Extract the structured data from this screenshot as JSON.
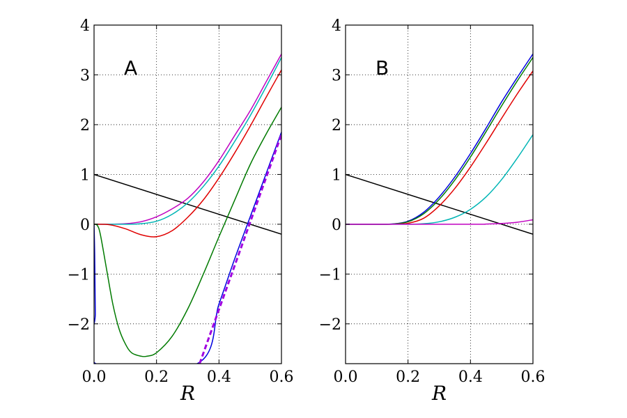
{
  "chart_data": [
    {
      "type": "line",
      "panel_label": "A",
      "xlabel": "R",
      "ylabel": "",
      "xlim": [
        0,
        0.6
      ],
      "ylim": [
        -2.8,
        4
      ],
      "xticks": [
        0,
        0.2,
        0.4,
        0.6
      ],
      "xtick_labels": [
        "0.0",
        "0.2",
        "0.4",
        "0.6"
      ],
      "yticks": [
        -2,
        -1,
        0,
        1,
        2,
        3,
        4
      ],
      "ytick_labels": [
        "−2",
        "−1",
        "0",
        "1",
        "2",
        "3",
        "4"
      ],
      "grid": true,
      "series": [
        {
          "name": "black line",
          "color": "#000000",
          "dashed": false,
          "x": [
            0,
            0.6
          ],
          "y": [
            1.0,
            -0.2
          ]
        },
        {
          "name": "magenta curve",
          "color": "#c000c0",
          "dashed": false,
          "x": [
            0,
            0.05,
            0.1,
            0.15,
            0.2,
            0.25,
            0.3,
            0.35,
            0.4,
            0.45,
            0.5,
            0.55,
            0.6
          ],
          "y": [
            0,
            0,
            0.01,
            0.05,
            0.15,
            0.31,
            0.52,
            0.85,
            1.28,
            1.78,
            2.28,
            2.85,
            3.42
          ]
        },
        {
          "name": "cyan curve",
          "color": "#00b5b5",
          "dashed": false,
          "x": [
            0,
            0.05,
            0.1,
            0.15,
            0.2,
            0.25,
            0.3,
            0.35,
            0.4,
            0.45,
            0.5,
            0.55,
            0.6
          ],
          "y": [
            0,
            0,
            0,
            0.01,
            0.06,
            0.2,
            0.43,
            0.76,
            1.17,
            1.66,
            2.18,
            2.75,
            3.35
          ]
        },
        {
          "name": "red curve",
          "color": "#e00000",
          "dashed": false,
          "x": [
            0,
            0.05,
            0.1,
            0.15,
            0.2,
            0.25,
            0.3,
            0.35,
            0.4,
            0.45,
            0.5,
            0.55,
            0.6
          ],
          "y": [
            0,
            -0.01,
            -0.09,
            -0.21,
            -0.25,
            -0.13,
            0.14,
            0.49,
            0.93,
            1.43,
            1.97,
            2.54,
            3.1
          ]
        },
        {
          "name": "green curve",
          "color": "#007a00",
          "dashed": false,
          "x": [
            0,
            0.01,
            0.02,
            0.04,
            0.06,
            0.08,
            0.1,
            0.12,
            0.15,
            0.17,
            0.2,
            0.25,
            0.3,
            0.35,
            0.4,
            0.45,
            0.5,
            0.55,
            0.6
          ],
          "y": [
            0,
            -0.02,
            -0.2,
            -0.9,
            -1.6,
            -2.1,
            -2.4,
            -2.58,
            -2.65,
            -2.65,
            -2.58,
            -2.25,
            -1.7,
            -1.0,
            -0.25,
            0.48,
            1.2,
            1.8,
            2.35
          ]
        },
        {
          "name": "blue curve",
          "color": "#0000e0",
          "dashed": false,
          "x": [
            0,
            0.002,
            0.004,
            0.006,
            0.33,
            0.4,
            0.45,
            0.5,
            0.55,
            0.6
          ],
          "y": [
            0,
            -0.6,
            -1.8,
            -2.8,
            -2.8,
            -1.6,
            -0.7,
            0.15,
            1.0,
            1.85
          ]
        },
        {
          "name": "purple dashed asymptote",
          "color": "#a000e0",
          "dashed": true,
          "x": [
            0.338,
            0.6
          ],
          "y": [
            -2.8,
            1.8
          ]
        }
      ]
    },
    {
      "type": "line",
      "panel_label": "B",
      "xlabel": "R",
      "ylabel": "",
      "xlim": [
        0,
        0.6
      ],
      "ylim": [
        -2.8,
        4
      ],
      "xticks": [
        0,
        0.2,
        0.4,
        0.6
      ],
      "xtick_labels": [
        "0.0",
        "0.2",
        "0.4",
        "0.6"
      ],
      "yticks": [
        -2,
        -1,
        0,
        1,
        2,
        3,
        4
      ],
      "ytick_labels": [
        "−2",
        "−1",
        "0",
        "1",
        "2",
        "3",
        "4"
      ],
      "grid": true,
      "series": [
        {
          "name": "black line",
          "color": "#000000",
          "dashed": false,
          "x": [
            0,
            0.6
          ],
          "y": [
            1.0,
            -0.2
          ]
        },
        {
          "name": "blue curve",
          "color": "#0000e0",
          "dashed": false,
          "x": [
            0,
            0.05,
            0.1,
            0.15,
            0.2,
            0.25,
            0.3,
            0.35,
            0.4,
            0.45,
            0.5,
            0.55,
            0.6
          ],
          "y": [
            0,
            0,
            0,
            0.005,
            0.06,
            0.24,
            0.55,
            0.95,
            1.42,
            1.93,
            2.46,
            2.95,
            3.42
          ]
        },
        {
          "name": "green curve",
          "color": "#007a00",
          "dashed": false,
          "x": [
            0,
            0.05,
            0.1,
            0.15,
            0.2,
            0.25,
            0.3,
            0.35,
            0.4,
            0.45,
            0.5,
            0.55,
            0.6
          ],
          "y": [
            0,
            0,
            0,
            0.004,
            0.05,
            0.21,
            0.5,
            0.89,
            1.35,
            1.86,
            2.38,
            2.88,
            3.35
          ]
        },
        {
          "name": "red curve",
          "color": "#e00000",
          "dashed": false,
          "x": [
            0,
            0.05,
            0.1,
            0.15,
            0.2,
            0.25,
            0.3,
            0.35,
            0.4,
            0.45,
            0.5,
            0.55,
            0.6
          ],
          "y": [
            0,
            0,
            0,
            0.002,
            0.02,
            0.12,
            0.37,
            0.72,
            1.15,
            1.63,
            2.13,
            2.62,
            3.08
          ]
        },
        {
          "name": "cyan curve",
          "color": "#00b5b5",
          "dashed": false,
          "x": [
            0,
            0.1,
            0.2,
            0.25,
            0.3,
            0.35,
            0.4,
            0.45,
            0.5,
            0.55,
            0.6
          ],
          "y": [
            0,
            0,
            0,
            0.01,
            0.05,
            0.14,
            0.3,
            0.55,
            0.9,
            1.33,
            1.8
          ]
        },
        {
          "name": "magenta curve",
          "color": "#c000c0",
          "dashed": false,
          "x": [
            0,
            0.4,
            0.45,
            0.5,
            0.55,
            0.6
          ],
          "y": [
            0,
            0,
            0.003,
            0.015,
            0.04,
            0.09
          ]
        }
      ]
    }
  ]
}
